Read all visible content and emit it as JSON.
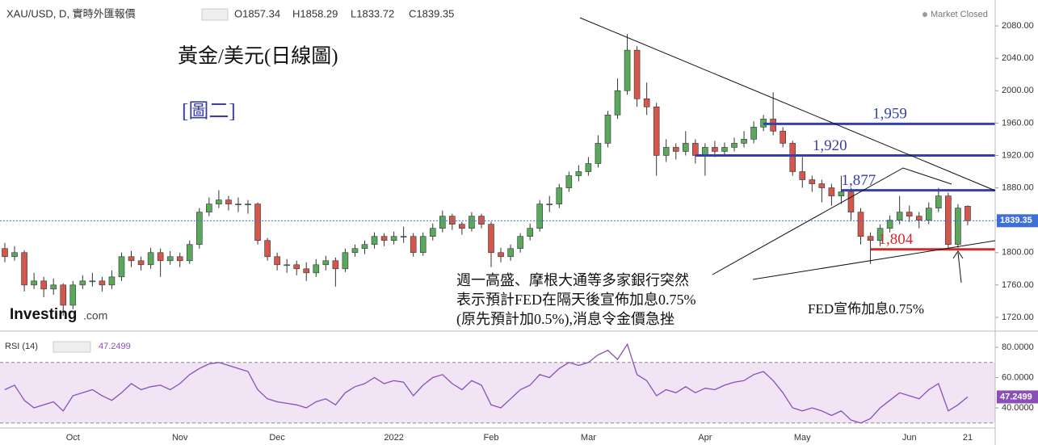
{
  "header": {
    "symbol": "XAU/USD, D, 實時外匯報價",
    "open": "O1857.34",
    "high": "H1858.29",
    "low": "L1833.72",
    "close": "C1839.35",
    "status": "Market Closed",
    "logo": "Investing",
    "logo_suffix": ".com"
  },
  "chart_data": [
    {
      "type": "candlestick",
      "title": "黃金/美元(日線圖)",
      "subtitle": "[圖二]",
      "categories": [
        null,
        null,
        null,
        null,
        null,
        null,
        null,
        "Oct",
        null,
        null,
        null,
        null,
        null,
        null,
        null,
        null,
        null,
        null,
        "Nov",
        null,
        null,
        null,
        null,
        null,
        null,
        null,
        null,
        null,
        "Dec",
        null,
        null,
        null,
        null,
        null,
        null,
        null,
        null,
        null,
        null,
        null,
        "2022",
        null,
        null,
        null,
        null,
        null,
        null,
        null,
        null,
        null,
        "Feb",
        null,
        null,
        null,
        null,
        null,
        null,
        null,
        null,
        null,
        "Mar",
        null,
        null,
        null,
        null,
        null,
        null,
        null,
        null,
        null,
        null,
        null,
        "Apr",
        null,
        null,
        null,
        null,
        null,
        null,
        null,
        null,
        null,
        "May",
        null,
        null,
        null,
        null,
        null,
        null,
        null,
        null,
        null,
        null,
        "Jun",
        null,
        null,
        null,
        null,
        null,
        "21"
      ],
      "open": [
        1805,
        1795,
        1800,
        1760,
        1765,
        1755,
        1760,
        1735,
        1760,
        1765,
        1765,
        1760,
        1770,
        1795,
        1790,
        1785,
        1800,
        1790,
        1795,
        1790,
        1810,
        1850,
        1860,
        1865,
        1860,
        1860,
        1860,
        1815,
        1795,
        1785,
        1785,
        1780,
        1775,
        1785,
        1790,
        1780,
        1800,
        1805,
        1810,
        1820,
        1815,
        1820,
        1820,
        1800,
        1820,
        1830,
        1845,
        1835,
        1830,
        1845,
        1835,
        1800,
        1795,
        1805,
        1820,
        1830,
        1860,
        1860,
        1880,
        1895,
        1900,
        1910,
        1935,
        1970,
        2000,
        2050,
        1990,
        1980,
        1920,
        1930,
        1925,
        1935,
        1920,
        1930,
        1925,
        1930,
        1935,
        1940,
        1955,
        1965,
        1950,
        1935,
        1900,
        1890,
        1885,
        1880,
        1870,
        1875,
        1850,
        1820,
        1815,
        1830,
        1840,
        1850,
        1845,
        1840,
        1855,
        1870,
        1810,
        1857.34
      ],
      "high": [
        1812,
        1808,
        1803,
        1775,
        1770,
        1768,
        1762,
        1765,
        1772,
        1775,
        1770,
        1778,
        1800,
        1802,
        1795,
        1806,
        1805,
        1802,
        1800,
        1815,
        1855,
        1868,
        1877,
        1870,
        1868,
        1865,
        1862,
        1818,
        1800,
        1792,
        1790,
        1788,
        1792,
        1796,
        1794,
        1805,
        1810,
        1815,
        1825,
        1824,
        1826,
        1832,
        1824,
        1825,
        1836,
        1852,
        1848,
        1838,
        1850,
        1848,
        1838,
        1806,
        1810,
        1824,
        1836,
        1865,
        1870,
        1885,
        1900,
        1908,
        1918,
        1945,
        1975,
        2015,
        2070,
        2055,
        2010,
        1985,
        1940,
        1935,
        1950,
        1940,
        1935,
        1938,
        1936,
        1942,
        1950,
        1962,
        1970,
        1998,
        1955,
        1938,
        1918,
        1895,
        1890,
        1885,
        1895,
        1880,
        1855,
        1825,
        1835,
        1846,
        1870,
        1858,
        1850,
        1862,
        1880,
        1874,
        1860,
        1858.29
      ],
      "low": [
        1788,
        1790,
        1752,
        1755,
        1745,
        1748,
        1722,
        1730,
        1755,
        1758,
        1752,
        1755,
        1765,
        1782,
        1778,
        1780,
        1770,
        1785,
        1782,
        1786,
        1805,
        1845,
        1855,
        1852,
        1850,
        1848,
        1810,
        1790,
        1778,
        1775,
        1772,
        1765,
        1770,
        1778,
        1758,
        1776,
        1795,
        1798,
        1805,
        1808,
        1810,
        1812,
        1795,
        1796,
        1815,
        1825,
        1828,
        1822,
        1826,
        1830,
        1782,
        1788,
        1790,
        1800,
        1815,
        1826,
        1850,
        1855,
        1875,
        1888,
        1895,
        1905,
        1930,
        1965,
        1995,
        1980,
        1970,
        1895,
        1912,
        1915,
        1920,
        1910,
        1895,
        1918,
        1920,
        1925,
        1930,
        1935,
        1950,
        1945,
        1930,
        1895,
        1880,
        1875,
        1862,
        1858,
        1860,
        1840,
        1810,
        1786,
        1808,
        1825,
        1835,
        1838,
        1830,
        1835,
        1850,
        1805,
        1806,
        1833.72
      ],
      "close": [
        1795,
        1800,
        1760,
        1765,
        1755,
        1760,
        1735,
        1760,
        1765,
        1765,
        1760,
        1770,
        1795,
        1790,
        1785,
        1800,
        1790,
        1795,
        1790,
        1810,
        1850,
        1860,
        1865,
        1860,
        1860,
        1860,
        1815,
        1795,
        1785,
        1785,
        1780,
        1775,
        1785,
        1790,
        1780,
        1800,
        1805,
        1810,
        1820,
        1815,
        1820,
        1820,
        1800,
        1820,
        1830,
        1845,
        1835,
        1830,
        1845,
        1835,
        1800,
        1795,
        1805,
        1820,
        1830,
        1860,
        1860,
        1880,
        1895,
        1900,
        1910,
        1935,
        1970,
        2000,
        2050,
        1990,
        1980,
        1920,
        1930,
        1925,
        1935,
        1920,
        1930,
        1925,
        1930,
        1935,
        1940,
        1955,
        1965,
        1950,
        1935,
        1900,
        1890,
        1885,
        1880,
        1870,
        1875,
        1850,
        1820,
        1815,
        1830,
        1840,
        1850,
        1845,
        1840,
        1855,
        1870,
        1810,
        1855,
        1839.35
      ],
      "up_color": "#5aa85c",
      "down_color": "#d4574e",
      "ylim": [
        1703,
        2112
      ],
      "yticks": [
        {
          "value": 2080,
          "label": "2080.00"
        },
        {
          "value": 2040,
          "label": "2040.00"
        },
        {
          "value": 2000,
          "label": "2000.00"
        },
        {
          "value": 1960,
          "label": "1960.00"
        },
        {
          "value": 1920,
          "label": "1920.00"
        },
        {
          "value": 1880,
          "label": "1880.00"
        },
        {
          "value": 1840,
          "label": "1840.00"
        },
        {
          "value": 1800,
          "label": "1800.00"
        },
        {
          "value": 1760,
          "label": "1760.00"
        },
        {
          "value": 1720,
          "label": "1720.00"
        }
      ],
      "levels": [
        {
          "value": 1959,
          "label": "1,959",
          "color": "#3640a8",
          "start": 78
        },
        {
          "value": 1920,
          "label": "1,920",
          "color": "#3640a8",
          "start": 71
        },
        {
          "value": 1877,
          "label": "1,877",
          "color": "#3640a8",
          "start": 86
        },
        {
          "value": 1804,
          "label": "1,804",
          "color": "#d62828",
          "start": 89
        }
      ],
      "annotations": [
        "週一高盛、摩根大通等多家銀行突然",
        "表示預計FED在隔天後宣佈加息0.75%",
        "(原先預計加0.5%),消息令金價急挫"
      ],
      "fed_note": "FED宣佈加息0.75%"
    },
    {
      "type": "line",
      "title": "RSI (14)",
      "color": "#8a4fb8",
      "values": [
        52,
        55,
        45,
        40,
        42,
        44,
        38,
        48,
        50,
        52,
        48,
        45,
        50,
        56,
        52,
        54,
        55,
        52,
        56,
        62,
        66,
        69,
        70,
        68,
        66,
        64,
        52,
        46,
        44,
        43,
        42,
        40,
        44,
        46,
        42,
        50,
        54,
        56,
        60,
        56,
        58,
        57,
        48,
        55,
        60,
        62,
        56,
        52,
        58,
        55,
        42,
        40,
        46,
        52,
        55,
        62,
        60,
        66,
        70,
        68,
        70,
        75,
        78,
        72,
        82,
        62,
        58,
        48,
        52,
        50,
        54,
        50,
        53,
        52,
        55,
        57,
        58,
        62,
        64,
        58,
        50,
        40,
        38,
        40,
        38,
        35,
        38,
        32,
        30,
        33,
        40,
        45,
        50,
        48,
        46,
        52,
        56,
        38,
        42,
        47.2499
      ],
      "ylim": [
        26.7,
        86.4
      ],
      "yticks": [
        {
          "value": 80,
          "label": "80.0000"
        },
        {
          "value": 60,
          "label": "60.0000"
        },
        {
          "value": 40,
          "label": "40.0000"
        }
      ],
      "band": [
        30,
        70
      ],
      "band_color": "#f1e5f5"
    }
  ]
}
